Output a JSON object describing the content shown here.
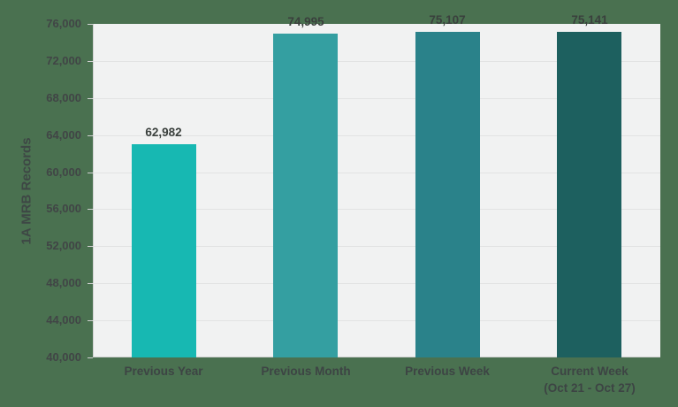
{
  "chart_data": {
    "type": "bar",
    "title": "",
    "xlabel": "",
    "ylabel": "1A MRB Records",
    "categories": [
      {
        "label": "Previous Year",
        "sublabel": ""
      },
      {
        "label": "Previous Month",
        "sublabel": ""
      },
      {
        "label": "Previous Week",
        "sublabel": ""
      },
      {
        "label": "Current Week",
        "sublabel": "(Oct 21 - Oct 27)"
      }
    ],
    "values": [
      62982,
      74995,
      75107,
      75141
    ],
    "value_labels": [
      "62,982",
      "74,995",
      "75,107",
      "75,141"
    ],
    "bar_colors": [
      "#17b8b2",
      "#349fa1",
      "#2a828a",
      "#1d605f"
    ],
    "ylim": [
      40000,
      76000
    ],
    "ytick_step": 4000,
    "ytick_labels": [
      "76,000",
      "72,000",
      "68,000",
      "64,000",
      "60,000",
      "56,000",
      "52,000",
      "48,000",
      "44,000",
      "40,000"
    ],
    "grid": true,
    "legend": false
  },
  "colors": {
    "page_background": "#4a7150",
    "plot_background": "#f1f2f2",
    "gridline": "#e2e3e3",
    "axis_line": "#d0d1d1",
    "ytick_label": "#414546",
    "data_label": "#3a403d",
    "category_label": "#3d4444",
    "axis_title": "#3e4745"
  }
}
